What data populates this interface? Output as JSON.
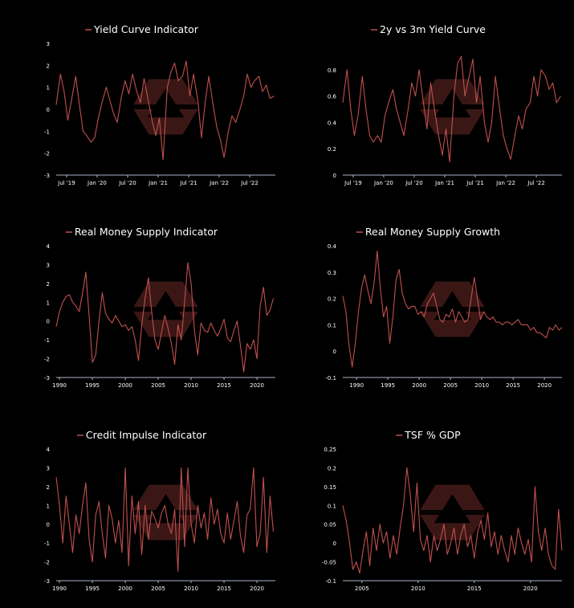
{
  "colors": {
    "background": "#000000",
    "series": "#c0504d",
    "axis": "#aab4c8",
    "watermark": "#6a2a27"
  },
  "watermark_icon": "hexagon-arrow-logo",
  "chart_data": [
    {
      "type": "line",
      "title": "Yield Curve Indicator",
      "series_name": "",
      "ylim": [
        -3,
        3
      ],
      "yticks": [
        "3",
        "2",
        "1",
        "0",
        "-1",
        "-2",
        "-3"
      ],
      "xlim": [
        2019.33,
        2022.92
      ],
      "xticks": [
        {
          "x": 2019.5,
          "label": "Jul '19"
        },
        {
          "x": 2020.0,
          "label": "Jan '20"
        },
        {
          "x": 2020.5,
          "label": "Jul '20"
        },
        {
          "x": 2021.0,
          "label": "Jan '21"
        },
        {
          "x": 2021.5,
          "label": "Jul '21"
        },
        {
          "x": 2022.0,
          "label": "Jan '22"
        },
        {
          "x": 2022.5,
          "label": "Jul '22"
        }
      ],
      "x": [
        2019.33,
        2019.4,
        2019.46,
        2019.52,
        2019.58,
        2019.65,
        2019.71,
        2019.77,
        2019.83,
        2019.9,
        2019.96,
        2020.02,
        2020.08,
        2020.15,
        2020.21,
        2020.27,
        2020.33,
        2020.4,
        2020.46,
        2020.52,
        2020.58,
        2020.65,
        2020.71,
        2020.77,
        2020.83,
        2020.9,
        2020.96,
        2021.02,
        2021.08,
        2021.15,
        2021.21,
        2021.27,
        2021.33,
        2021.4,
        2021.46,
        2021.52,
        2021.58,
        2021.65,
        2021.71,
        2021.77,
        2021.83,
        2021.9,
        2021.96,
        2022.02,
        2022.08,
        2022.15,
        2022.21,
        2022.27,
        2022.33,
        2022.4,
        2022.46,
        2022.52,
        2022.58,
        2022.65,
        2022.71,
        2022.77,
        2022.83,
        2022.9
      ],
      "values": [
        0.2,
        1.6,
        0.8,
        -0.5,
        0.4,
        1.5,
        0.2,
        -1.0,
        -1.2,
        -1.5,
        -1.3,
        -0.4,
        0.3,
        1.0,
        0.4,
        -0.2,
        -0.6,
        0.6,
        1.3,
        0.7,
        1.6,
        0.8,
        0.3,
        1.4,
        0.5,
        -0.5,
        -1.2,
        -0.4,
        -2.3,
        1.0,
        1.7,
        2.1,
        1.3,
        1.5,
        2.2,
        0.6,
        1.6,
        0.4,
        -1.3,
        0.3,
        1.5,
        0.2,
        -0.8,
        -1.4,
        -2.2,
        -1.0,
        -0.3,
        -0.6,
        -0.1,
        0.6,
        1.6,
        1.0,
        1.3,
        1.5,
        0.8,
        1.1,
        0.5,
        0.6
      ]
    },
    {
      "type": "line",
      "title": "2y vs 3m Yield Curve",
      "series_name": "",
      "ylim": [
        0,
        1.0
      ],
      "yticks": [
        "0.8",
        "0.6",
        "0.4",
        "0.2",
        "0"
      ],
      "yticks_at": [
        0.8,
        0.6,
        0.4,
        0.2,
        0
      ],
      "xlim": [
        2019.33,
        2022.92
      ],
      "xticks": [
        {
          "x": 2019.5,
          "label": "Jul '19"
        },
        {
          "x": 2020.0,
          "label": "Jan '20"
        },
        {
          "x": 2020.5,
          "label": "Jul '20"
        },
        {
          "x": 2021.0,
          "label": "Jan '21"
        },
        {
          "x": 2021.5,
          "label": "Jul '21"
        },
        {
          "x": 2022.0,
          "label": "Jan '22"
        },
        {
          "x": 2022.5,
          "label": "Jul '22"
        }
      ],
      "x": [
        2019.33,
        2019.4,
        2019.46,
        2019.52,
        2019.58,
        2019.65,
        2019.71,
        2019.77,
        2019.83,
        2019.9,
        2019.96,
        2020.02,
        2020.08,
        2020.15,
        2020.21,
        2020.27,
        2020.33,
        2020.4,
        2020.46,
        2020.52,
        2020.58,
        2020.65,
        2020.71,
        2020.77,
        2020.83,
        2020.9,
        2020.96,
        2021.02,
        2021.08,
        2021.15,
        2021.21,
        2021.27,
        2021.33,
        2021.4,
        2021.46,
        2021.52,
        2021.58,
        2021.65,
        2021.71,
        2021.77,
        2021.83,
        2021.9,
        2021.96,
        2022.02,
        2022.08,
        2022.15,
        2022.21,
        2022.27,
        2022.33,
        2022.4,
        2022.46,
        2022.52,
        2022.58,
        2022.65,
        2022.71,
        2022.77,
        2022.83,
        2022.9
      ],
      "values": [
        0.55,
        0.8,
        0.5,
        0.3,
        0.45,
        0.75,
        0.5,
        0.3,
        0.25,
        0.3,
        0.25,
        0.45,
        0.55,
        0.65,
        0.5,
        0.4,
        0.3,
        0.5,
        0.7,
        0.6,
        0.8,
        0.55,
        0.35,
        0.7,
        0.5,
        0.3,
        0.15,
        0.35,
        0.1,
        0.6,
        0.85,
        0.9,
        0.6,
        0.75,
        0.88,
        0.55,
        0.75,
        0.4,
        0.25,
        0.4,
        0.75,
        0.5,
        0.3,
        0.2,
        0.12,
        0.3,
        0.45,
        0.35,
        0.5,
        0.55,
        0.75,
        0.6,
        0.8,
        0.75,
        0.65,
        0.7,
        0.55,
        0.6
      ]
    },
    {
      "type": "line",
      "title": "Real Money Supply Indicator",
      "series_name": "",
      "ylim": [
        -3,
        4
      ],
      "yticks": [
        "4",
        "3",
        "2",
        "1",
        "0",
        "-1",
        "-2",
        "-3"
      ],
      "xlim": [
        1989.5,
        2022.8
      ],
      "xticks": [
        {
          "x": 1990,
          "label": "1990"
        },
        {
          "x": 1995,
          "label": "1995"
        },
        {
          "x": 2000,
          "label": "2000"
        },
        {
          "x": 2005,
          "label": "2005"
        },
        {
          "x": 2010,
          "label": "2010"
        },
        {
          "x": 2015,
          "label": "2015"
        },
        {
          "x": 2020,
          "label": "2020"
        }
      ],
      "x": [
        1989.5,
        1990.0,
        1990.5,
        1991.0,
        1991.5,
        1992.0,
        1992.5,
        1993.0,
        1993.5,
        1994.0,
        1994.5,
        1995.0,
        1995.5,
        1996.0,
        1996.5,
        1997.0,
        1997.5,
        1998.0,
        1998.5,
        1999.0,
        1999.5,
        2000.0,
        2000.5,
        2001.0,
        2001.5,
        2002.0,
        2002.5,
        2003.0,
        2003.5,
        2004.0,
        2004.5,
        2005.0,
        2005.5,
        2006.0,
        2006.5,
        2007.0,
        2007.5,
        2008.0,
        2008.5,
        2009.0,
        2009.5,
        2010.0,
        2010.5,
        2011.0,
        2011.5,
        2012.0,
        2012.5,
        2013.0,
        2013.5,
        2014.0,
        2014.5,
        2015.0,
        2015.5,
        2016.0,
        2016.5,
        2017.0,
        2017.5,
        2018.0,
        2018.5,
        2019.0,
        2019.5,
        2020.0,
        2020.5,
        2021.0,
        2021.5,
        2022.0,
        2022.5
      ],
      "values": [
        -0.3,
        0.5,
        1.0,
        1.3,
        1.4,
        1.0,
        0.8,
        0.5,
        1.5,
        2.6,
        0.3,
        -2.2,
        -1.8,
        0.0,
        1.5,
        0.4,
        0.1,
        -0.1,
        0.3,
        0.0,
        -0.3,
        -0.2,
        -0.5,
        -0.3,
        -1.0,
        -2.1,
        -0.2,
        1.2,
        2.3,
        0.5,
        -1.0,
        -1.5,
        -0.6,
        0.3,
        -0.4,
        -1.2,
        -2.3,
        -0.2,
        -1.0,
        1.0,
        3.1,
        2.0,
        -0.5,
        -1.8,
        -0.1,
        -0.5,
        -0.6,
        -0.1,
        -0.5,
        -0.8,
        -0.4,
        0.1,
        -0.9,
        -1.1,
        -0.5,
        0.0,
        -1.3,
        -2.7,
        -1.2,
        -1.5,
        -1.0,
        -2.0,
        0.8,
        1.8,
        0.3,
        0.6,
        1.2
      ]
    },
    {
      "type": "line",
      "title": "Real Money Supply Growth",
      "series_name": "",
      "ylim": [
        -0.1,
        0.4
      ],
      "yticks": [
        "0.4",
        "0.3",
        "0.2",
        "0.1",
        "0",
        "-0.1"
      ],
      "yticks_at": [
        0.4,
        0.3,
        0.2,
        0.1,
        0,
        -0.1
      ],
      "xlim": [
        1987.8,
        2022.8
      ],
      "xticks": [
        {
          "x": 1990,
          "label": "1990"
        },
        {
          "x": 1995,
          "label": "1995"
        },
        {
          "x": 2000,
          "label": "2000"
        },
        {
          "x": 2005,
          "label": "2005"
        },
        {
          "x": 2010,
          "label": "2010"
        },
        {
          "x": 2015,
          "label": "2015"
        },
        {
          "x": 2020,
          "label": "2020"
        }
      ],
      "x": [
        1987.8,
        1988.3,
        1988.8,
        1989.3,
        1989.8,
        1990.3,
        1990.8,
        1991.3,
        1991.8,
        1992.3,
        1992.8,
        1993.3,
        1993.8,
        1994.3,
        1994.8,
        1995.3,
        1995.8,
        1996.3,
        1996.8,
        1997.3,
        1997.8,
        1998.3,
        1998.8,
        1999.3,
        1999.8,
        2000.3,
        2000.8,
        2001.3,
        2001.8,
        2002.3,
        2002.8,
        2003.3,
        2003.8,
        2004.3,
        2004.8,
        2005.3,
        2005.8,
        2006.3,
        2006.8,
        2007.3,
        2007.8,
        2008.3,
        2008.8,
        2009.3,
        2009.8,
        2010.3,
        2010.8,
        2011.3,
        2011.8,
        2012.3,
        2012.8,
        2013.3,
        2013.8,
        2014.3,
        2014.8,
        2015.3,
        2015.8,
        2016.3,
        2016.8,
        2017.3,
        2017.8,
        2018.3,
        2018.8,
        2019.3,
        2019.8,
        2020.3,
        2020.8,
        2021.3,
        2021.8,
        2022.3,
        2022.8
      ],
      "values": [
        0.21,
        0.15,
        0.02,
        -0.06,
        0.03,
        0.15,
        0.24,
        0.29,
        0.23,
        0.18,
        0.26,
        0.38,
        0.24,
        0.13,
        0.17,
        0.03,
        0.13,
        0.27,
        0.31,
        0.22,
        0.18,
        0.16,
        0.17,
        0.17,
        0.14,
        0.15,
        0.13,
        0.18,
        0.2,
        0.22,
        0.17,
        0.12,
        0.11,
        0.14,
        0.13,
        0.16,
        0.11,
        0.15,
        0.13,
        0.11,
        0.12,
        0.2,
        0.28,
        0.2,
        0.12,
        0.15,
        0.13,
        0.12,
        0.13,
        0.11,
        0.11,
        0.1,
        0.11,
        0.11,
        0.1,
        0.11,
        0.12,
        0.1,
        0.1,
        0.1,
        0.08,
        0.09,
        0.07,
        0.07,
        0.06,
        0.05,
        0.09,
        0.08,
        0.1,
        0.08,
        0.09
      ]
    },
    {
      "type": "line",
      "title": "Credit Impulse Indicator",
      "series_name": "",
      "ylim": [
        -3,
        4
      ],
      "yticks": [
        "4",
        "3",
        "2",
        "1",
        "0",
        "-1",
        "-2",
        "-3"
      ],
      "xlim": [
        1989.5,
        2022.8
      ],
      "xticks": [
        {
          "x": 1990,
          "label": "1990"
        },
        {
          "x": 1995,
          "label": "1995"
        },
        {
          "x": 2000,
          "label": "2000"
        },
        {
          "x": 2005,
          "label": "2005"
        },
        {
          "x": 2010,
          "label": "2010"
        },
        {
          "x": 2015,
          "label": "2015"
        },
        {
          "x": 2020,
          "label": "2020"
        }
      ],
      "x": [
        1989.5,
        1990.0,
        1990.5,
        1991.0,
        1991.5,
        1992.0,
        1992.5,
        1993.0,
        1993.5,
        1994.0,
        1994.5,
        1995.0,
        1995.5,
        1996.0,
        1996.5,
        1997.0,
        1997.5,
        1998.0,
        1998.5,
        1999.0,
        1999.5,
        2000.0,
        2000.5,
        2001.0,
        2001.5,
        2002.0,
        2002.5,
        2003.0,
        2003.5,
        2004.0,
        2004.5,
        2005.0,
        2005.5,
        2006.0,
        2006.5,
        2007.0,
        2007.5,
        2008.0,
        2008.5,
        2009.0,
        2009.5,
        2010.0,
        2010.5,
        2011.0,
        2011.5,
        2012.0,
        2012.5,
        2013.0,
        2013.5,
        2014.0,
        2014.5,
        2015.0,
        2015.5,
        2016.0,
        2016.5,
        2017.0,
        2017.5,
        2018.0,
        2018.5,
        2019.0,
        2019.5,
        2020.0,
        2020.5,
        2021.0,
        2021.5,
        2022.0,
        2022.5
      ],
      "values": [
        2.5,
        1.0,
        -1.0,
        1.5,
        0.0,
        -1.5,
        0.5,
        -0.5,
        1.0,
        2.2,
        -0.8,
        -2.0,
        0.5,
        1.2,
        -0.5,
        -1.8,
        1.0,
        0.3,
        -1.0,
        0.2,
        -1.5,
        3.0,
        -2.2,
        1.5,
        -0.5,
        1.2,
        -1.6,
        1.0,
        -0.8,
        0.7,
        0.3,
        -0.2,
        0.6,
        1.0,
        0.0,
        -0.5,
        0.8,
        -2.5,
        3.0,
        -1.2,
        3.0,
        0.0,
        -1.0,
        1.0,
        -0.2,
        0.6,
        -0.8,
        1.4,
        0.0,
        0.8,
        -0.5,
        -1.0,
        0.6,
        -0.8,
        0.2,
        1.2,
        -0.6,
        -1.5,
        0.5,
        0.8,
        3.0,
        -1.2,
        -0.5,
        2.5,
        -1.5,
        1.5,
        -0.4
      ]
    },
    {
      "type": "line",
      "title": "TSF % GDP",
      "series_name": "",
      "ylim": [
        -0.1,
        0.25
      ],
      "yticks": [
        "0.25",
        "0.2",
        "0.15",
        "0.1",
        "0.05",
        "0",
        "-0.05",
        "-0.1"
      ],
      "yticks_at": [
        0.25,
        0.2,
        0.15,
        0.1,
        0.05,
        0,
        -0.05,
        -0.1
      ],
      "xlim": [
        2003.3,
        2022.8
      ],
      "xticks": [
        {
          "x": 2005,
          "label": "2005"
        },
        {
          "x": 2010,
          "label": "2010"
        },
        {
          "x": 2015,
          "label": "2015"
        },
        {
          "x": 2020,
          "label": "2020"
        }
      ],
      "x": [
        2003.3,
        2003.6,
        2003.9,
        2004.2,
        2004.5,
        2004.8,
        2005.1,
        2005.4,
        2005.7,
        2006.0,
        2006.3,
        2006.6,
        2006.9,
        2007.2,
        2007.5,
        2007.8,
        2008.1,
        2008.4,
        2008.7,
        2009.0,
        2009.3,
        2009.6,
        2009.9,
        2010.2,
        2010.5,
        2010.8,
        2011.1,
        2011.4,
        2011.7,
        2012.0,
        2012.3,
        2012.6,
        2012.9,
        2013.2,
        2013.5,
        2013.8,
        2014.1,
        2014.4,
        2014.7,
        2015.0,
        2015.3,
        2015.6,
        2015.9,
        2016.2,
        2016.5,
        2016.8,
        2017.1,
        2017.4,
        2017.7,
        2018.0,
        2018.3,
        2018.6,
        2018.9,
        2019.2,
        2019.5,
        2019.8,
        2020.1,
        2020.4,
        2020.7,
        2021.0,
        2021.3,
        2021.6,
        2021.9,
        2022.2,
        2022.5,
        2022.8
      ],
      "values": [
        0.1,
        0.06,
        0.0,
        -0.07,
        -0.05,
        -0.08,
        -0.02,
        0.03,
        -0.06,
        0.04,
        -0.02,
        0.05,
        0.0,
        0.03,
        -0.04,
        0.02,
        -0.03,
        0.04,
        0.1,
        0.2,
        0.13,
        0.03,
        0.16,
        0.01,
        -0.02,
        0.02,
        -0.05,
        0.02,
        -0.02,
        0.01,
        0.05,
        -0.03,
        0.0,
        0.04,
        -0.03,
        0.02,
        0.05,
        -0.01,
        0.02,
        -0.04,
        0.03,
        0.06,
        0.01,
        0.08,
        -0.01,
        0.03,
        -0.03,
        0.02,
        -0.02,
        -0.05,
        0.02,
        -0.03,
        0.04,
        0.0,
        -0.03,
        0.01,
        -0.05,
        0.15,
        0.03,
        -0.02,
        0.04,
        -0.03,
        -0.06,
        -0.07,
        0.09,
        -0.02
      ]
    }
  ]
}
